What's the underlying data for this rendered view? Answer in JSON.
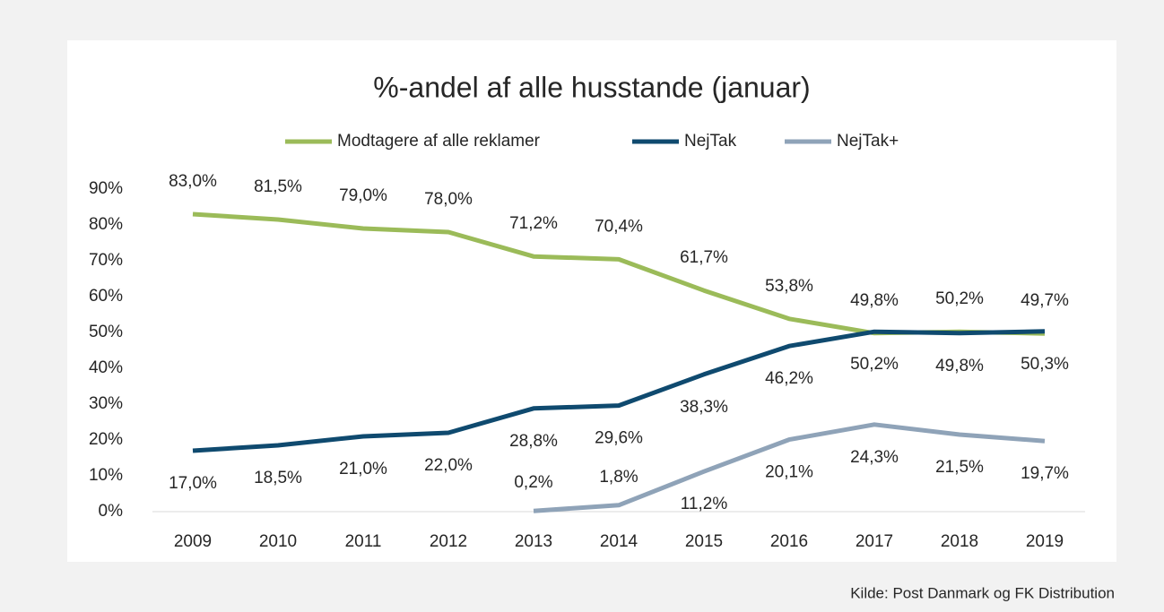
{
  "chart_data": {
    "type": "line",
    "title": "%-andel af alle husstande (januar)",
    "categories": [
      "2009",
      "2010",
      "2011",
      "2012",
      "2013",
      "2014",
      "2015",
      "2016",
      "2017",
      "2018",
      "2019"
    ],
    "series": [
      {
        "name": "Modtagere af alle reklamer",
        "color": "#9bbb59",
        "values": [
          83.0,
          81.5,
          79.0,
          78.0,
          71.2,
          70.4,
          61.7,
          53.8,
          49.8,
          50.2,
          49.7
        ],
        "value_labels": [
          "83,0%",
          "81,5%",
          "79,0%",
          "78,0%",
          "71,2%",
          "70,4%",
          "61,7%",
          "53,8%",
          "49,8%",
          "50,2%",
          "49,7%"
        ]
      },
      {
        "name": "NejTak",
        "color": "#0f4a6f",
        "values": [
          17.0,
          18.5,
          21.0,
          22.0,
          28.8,
          29.6,
          38.3,
          46.2,
          50.2,
          49.8,
          50.3
        ],
        "value_labels": [
          "17,0%",
          "18,5%",
          "21,0%",
          "22,0%",
          "28,8%",
          "29,6%",
          "38,3%",
          "46,2%",
          "50,2%",
          "49,8%",
          "50,3%"
        ]
      },
      {
        "name": "NejTak+",
        "color": "#8fa3b8",
        "values": [
          null,
          null,
          null,
          null,
          0.2,
          1.8,
          11.2,
          20.1,
          24.3,
          21.5,
          19.7
        ],
        "value_labels": [
          null,
          null,
          null,
          null,
          "0,2%",
          "1,8%",
          "11,2%",
          "20,1%",
          "24,3%",
          "21,5%",
          "19,7%"
        ]
      }
    ],
    "ylim": [
      0,
      90
    ],
    "yticks": [
      {
        "value": 0,
        "label": "0%"
      },
      {
        "value": 10,
        "label": "10%"
      },
      {
        "value": 20,
        "label": "20%"
      },
      {
        "value": 30,
        "label": "30%"
      },
      {
        "value": 40,
        "label": "40%"
      },
      {
        "value": 50,
        "label": "50%"
      },
      {
        "value": 60,
        "label": "60%"
      },
      {
        "value": 70,
        "label": "70%"
      },
      {
        "value": 80,
        "label": "80%"
      },
      {
        "value": 90,
        "label": "90%"
      }
    ],
    "legend": "top",
    "grid": false,
    "source": "Kilde: Post Danmark og FK Distribution"
  }
}
